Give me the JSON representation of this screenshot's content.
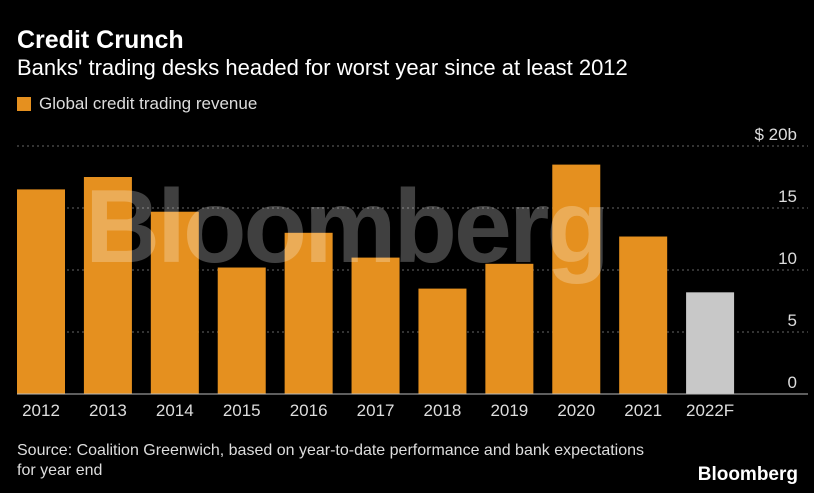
{
  "title": "Credit Crunch",
  "subtitle": "Banks' trading desks headed for worst year since at least 2012",
  "legend_label": "Global credit trading revenue",
  "source": "Source: Coalition Greenwich, based on year-to-date performance and bank expectations for year end",
  "brand": "Bloomberg",
  "watermark": "Bloomberg",
  "colors": {
    "actual": "#e5901f",
    "forecast": "#c8c8c8",
    "grid": "#666666"
  },
  "chart_data": {
    "type": "bar",
    "categories": [
      "2012",
      "2013",
      "2014",
      "2015",
      "2016",
      "2017",
      "2018",
      "2019",
      "2020",
      "2021",
      "2022F"
    ],
    "series": [
      {
        "name": "Global credit trading revenue",
        "values": [
          16.5,
          17.5,
          14.7,
          10.2,
          13.0,
          11.0,
          8.5,
          10.5,
          18.5,
          12.7,
          8.2
        ]
      }
    ],
    "forecast_index": 10,
    "ylim": [
      0,
      20
    ],
    "yticks": [
      0,
      5,
      10,
      15,
      20
    ],
    "ytick_labels": [
      "0",
      "5",
      "10",
      "15",
      "$ 20b"
    ],
    "grid": true,
    "legend_position": "top-left"
  }
}
